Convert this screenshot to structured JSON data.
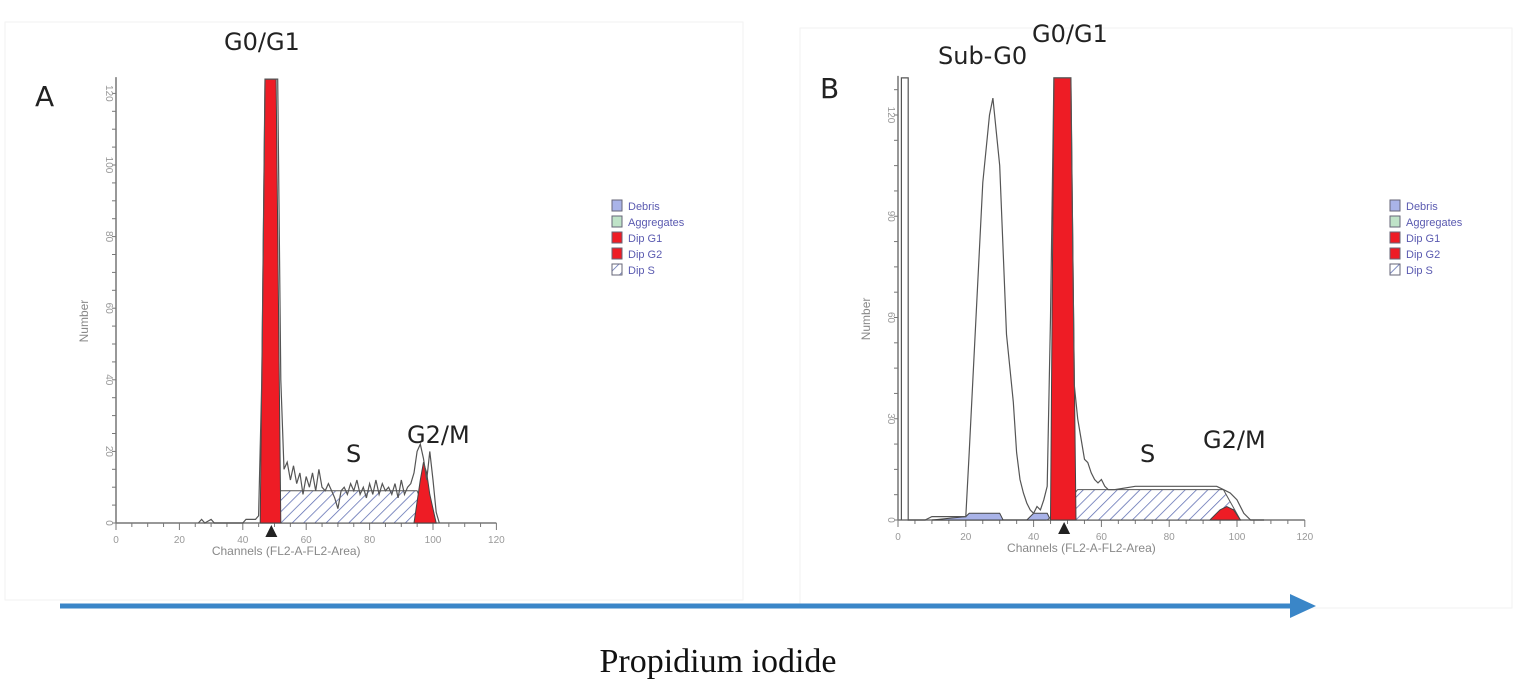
{
  "footer": {
    "axis_label": "Propidium iodide",
    "arrow_color": "#3a86c8"
  },
  "chart_data": [
    {
      "type": "area",
      "panel_label": "A",
      "annotations": [
        "G0/G1",
        "S",
        "G2/M"
      ],
      "xlabel": "Channels  (FL2-A-FL2-Area)",
      "ylabel": "Number",
      "xlim": [
        0,
        120
      ],
      "ylim": [
        0,
        124
      ],
      "xticks": [
        0,
        20,
        40,
        60,
        80,
        100,
        120
      ],
      "yticks": [
        0,
        20,
        40,
        60,
        80,
        100,
        120
      ],
      "grid": false,
      "legend": {
        "placement": "right",
        "entries": [
          {
            "name": "Debris",
            "color": "#a9b3e8"
          },
          {
            "name": "Aggregates",
            "color": "#bfe3c8"
          },
          {
            "name": "Dip G1",
            "color": "#ee1c25"
          },
          {
            "name": "Dip G2",
            "color": "#ee1c25"
          },
          {
            "name": "Dip S",
            "color": "hatched"
          }
        ]
      },
      "histogram": [
        [
          26,
          0
        ],
        [
          27,
          1
        ],
        [
          28,
          0
        ],
        [
          30,
          1
        ],
        [
          31,
          0
        ],
        [
          40,
          0
        ],
        [
          41,
          1
        ],
        [
          44,
          1
        ],
        [
          45,
          2
        ],
        [
          46,
          40
        ],
        [
          47,
          124
        ],
        [
          51,
          124
        ],
        [
          52,
          40
        ],
        [
          53,
          15
        ],
        [
          54,
          17
        ],
        [
          55,
          12
        ],
        [
          56,
          16
        ],
        [
          57,
          11
        ],
        [
          58,
          14
        ],
        [
          59,
          8
        ],
        [
          60,
          13
        ],
        [
          61,
          10
        ],
        [
          62,
          14
        ],
        [
          63,
          9
        ],
        [
          64,
          15
        ],
        [
          65,
          10
        ],
        [
          66,
          9
        ],
        [
          67,
          11
        ],
        [
          68,
          9
        ],
        [
          69,
          7
        ],
        [
          70,
          4
        ],
        [
          71,
          9
        ],
        [
          72,
          10
        ],
        [
          73,
          8
        ],
        [
          74,
          11
        ],
        [
          75,
          9
        ],
        [
          76,
          12
        ],
        [
          77,
          8
        ],
        [
          78,
          10
        ],
        [
          79,
          7
        ],
        [
          80,
          11
        ],
        [
          81,
          8
        ],
        [
          82,
          12
        ],
        [
          83,
          8
        ],
        [
          84,
          11
        ],
        [
          85,
          9
        ],
        [
          86,
          10
        ],
        [
          87,
          8
        ],
        [
          88,
          11
        ],
        [
          89,
          7
        ],
        [
          90,
          12
        ],
        [
          91,
          8
        ],
        [
          92,
          10
        ],
        [
          93,
          11
        ],
        [
          94,
          14
        ],
        [
          95,
          20
        ],
        [
          96,
          22
        ],
        [
          97,
          18
        ],
        [
          98,
          12
        ],
        [
          99,
          20
        ],
        [
          100,
          12
        ],
        [
          101,
          3
        ],
        [
          102,
          0
        ]
      ],
      "series": [
        {
          "name": "Dip S",
          "points": [
            [
              47,
              0
            ],
            [
              52,
              9
            ],
            [
              95,
              9
            ],
            [
              99,
              0
            ]
          ]
        },
        {
          "name": "Dip G1",
          "points": [
            [
              45.5,
              0
            ],
            [
              47,
              124
            ],
            [
              50.5,
              124
            ],
            [
              52,
              0
            ]
          ]
        },
        {
          "name": "Dip G2",
          "points": [
            [
              94,
              0
            ],
            [
              96,
              12
            ],
            [
              97,
              17
            ],
            [
              98,
              14
            ],
            [
              99,
              8
            ],
            [
              101,
              0
            ]
          ]
        }
      ],
      "g1_marker_channel": 49
    },
    {
      "type": "area",
      "panel_label": "B",
      "annotations": [
        "Sub-G0",
        "G0/G1",
        "S",
        "G2/M"
      ],
      "xlabel": "Channels  (FL2-A-FL2-Area)",
      "ylabel": "Number",
      "xlim": [
        0,
        120
      ],
      "ylim": [
        0,
        131
      ],
      "xticks": [
        0,
        20,
        40,
        60,
        80,
        100,
        120
      ],
      "yticks": [
        0,
        30,
        60,
        90,
        120
      ],
      "grid": false,
      "legend": {
        "placement": "right",
        "entries": [
          {
            "name": "Debris",
            "color": "#a9b3e8"
          },
          {
            "name": "Aggregates",
            "color": "#bfe3c8"
          },
          {
            "name": "Dip G1",
            "color": "#ee1c25"
          },
          {
            "name": "Dip G2",
            "color": "#ee1c25"
          },
          {
            "name": "Dip S",
            "color": "hatched"
          }
        ]
      },
      "histogram": [
        [
          1,
          0
        ],
        [
          1,
          131
        ],
        [
          3,
          131
        ],
        [
          3,
          0
        ],
        [
          8,
          0
        ],
        [
          10,
          1
        ],
        [
          20,
          1
        ],
        [
          21,
          20
        ],
        [
          23,
          60
        ],
        [
          25,
          100
        ],
        [
          27,
          120
        ],
        [
          28,
          125
        ],
        [
          29,
          115
        ],
        [
          30,
          105
        ],
        [
          31,
          80
        ],
        [
          32,
          55
        ],
        [
          33,
          45
        ],
        [
          34,
          35
        ],
        [
          35,
          20
        ],
        [
          36,
          12
        ],
        [
          37,
          8
        ],
        [
          38,
          5
        ],
        [
          39,
          3
        ],
        [
          40,
          2
        ],
        [
          41,
          4
        ],
        [
          42,
          3
        ],
        [
          43,
          6
        ],
        [
          44,
          10
        ],
        [
          45,
          60
        ],
        [
          46,
          131
        ],
        [
          51,
          131
        ],
        [
          52,
          40
        ],
        [
          53,
          30
        ],
        [
          54,
          24
        ],
        [
          55,
          18
        ],
        [
          56,
          17
        ],
        [
          57,
          14
        ],
        [
          58,
          12
        ],
        [
          59,
          11
        ],
        [
          60,
          12
        ],
        [
          61,
          10
        ],
        [
          62,
          9
        ],
        [
          64,
          9
        ],
        [
          70,
          10
        ],
        [
          80,
          10
        ],
        [
          90,
          10
        ],
        [
          94,
          10
        ],
        [
          96,
          9
        ],
        [
          98,
          8
        ],
        [
          100,
          6
        ],
        [
          102,
          2
        ],
        [
          104,
          0
        ],
        [
          108,
          0
        ]
      ],
      "series": [
        {
          "name": "Debris",
          "points": [
            [
              10,
              0
            ],
            [
              20,
              1
            ],
            [
              21,
              2
            ],
            [
              30,
              2
            ],
            [
              31,
              0
            ],
            [
              38,
              0
            ],
            [
              40,
              2
            ],
            [
              44,
              2
            ],
            [
              45,
              0
            ]
          ]
        },
        {
          "name": "Dip S",
          "points": [
            [
              44,
              0
            ],
            [
              49,
              4
            ],
            [
              53,
              9
            ],
            [
              96,
              9
            ],
            [
              101,
              0
            ]
          ]
        },
        {
          "name": "Dip G1",
          "points": [
            [
              45,
              0
            ],
            [
              46,
              131
            ],
            [
              51,
              131
            ],
            [
              52.5,
              0
            ]
          ]
        },
        {
          "name": "Dip G2",
          "points": [
            [
              92,
              0
            ],
            [
              95,
              3
            ],
            [
              97,
              4
            ],
            [
              99,
              3
            ],
            [
              101,
              0
            ]
          ]
        }
      ],
      "g1_marker_channel": 49
    }
  ]
}
